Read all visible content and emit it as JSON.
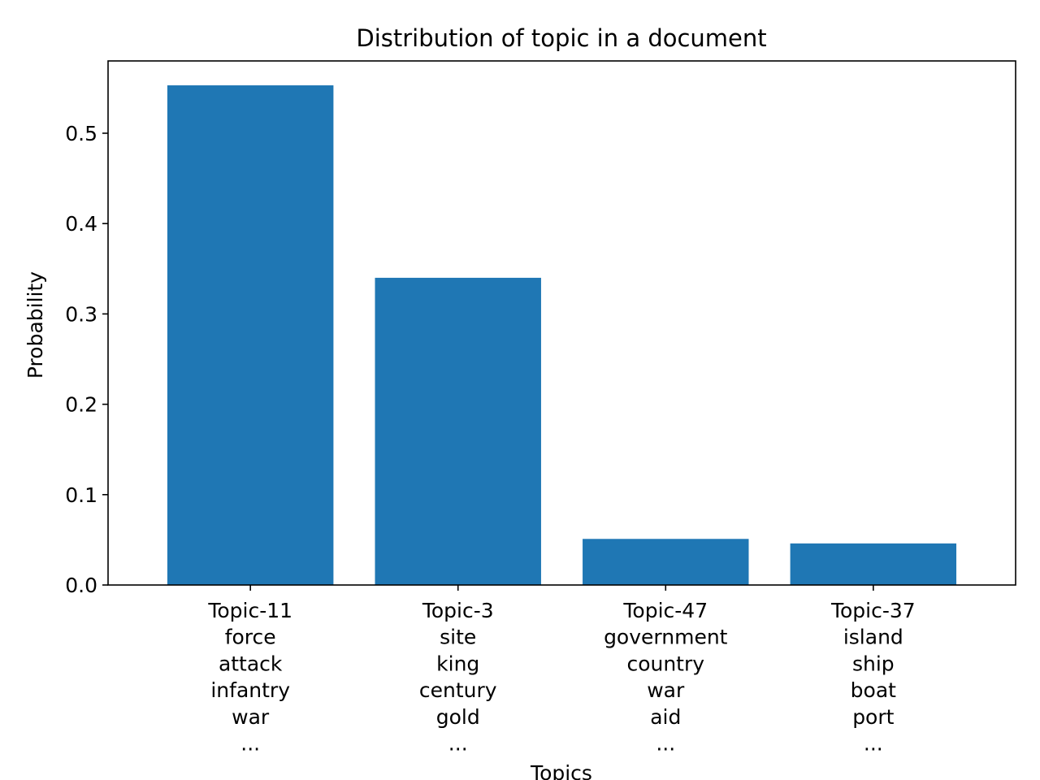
{
  "chart_data": {
    "type": "bar",
    "title": "Distribution of topic in a document",
    "xlabel": "Topics",
    "ylabel": "Probability",
    "categories": [
      [
        "Topic-11",
        "force",
        "attack",
        "infantry",
        "war",
        "..."
      ],
      [
        "Topic-3",
        "site",
        "king",
        "century",
        "gold",
        "..."
      ],
      [
        "Topic-47",
        "government",
        "country",
        "war",
        "aid",
        "..."
      ],
      [
        "Topic-37",
        "island",
        "ship",
        "boat",
        "port",
        "..."
      ]
    ],
    "values": [
      0.553,
      0.34,
      0.051,
      0.046
    ],
    "ylim": [
      0,
      0.58
    ],
    "yticks": [
      0.0,
      0.1,
      0.2,
      0.3,
      0.4,
      0.5
    ],
    "ytick_labels": [
      "0.0",
      "0.1",
      "0.2",
      "0.3",
      "0.4",
      "0.5"
    ],
    "bar_color": "#1f77b4",
    "grid": false,
    "legend": "none"
  }
}
